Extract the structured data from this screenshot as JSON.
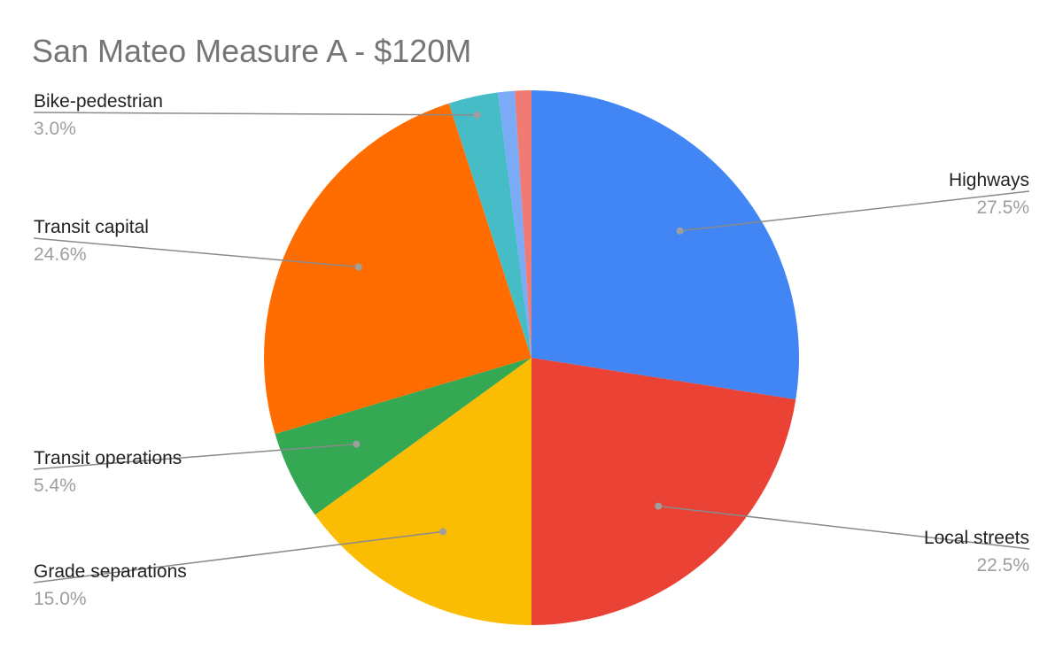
{
  "chart_data": {
    "type": "pie",
    "title": "San Mateo Measure A - $120M",
    "slices": [
      {
        "name": "Highways",
        "value": 27.5,
        "label": "27.5%",
        "color": "#4285f4",
        "labeled": true
      },
      {
        "name": "Local streets",
        "value": 22.5,
        "label": "22.5%",
        "color": "#ea4335",
        "labeled": true
      },
      {
        "name": "Grade separations",
        "value": 15.0,
        "label": "15.0%",
        "color": "#fbbc04",
        "labeled": true
      },
      {
        "name": "Transit operations",
        "value": 5.4,
        "label": "5.4%",
        "color": "#34a853",
        "labeled": true
      },
      {
        "name": "Transit capital",
        "value": 24.6,
        "label": "24.6%",
        "color": "#ff6d01",
        "labeled": true
      },
      {
        "name": "Bike-pedestrian",
        "value": 3.0,
        "label": "3.0%",
        "color": "#46bdc6",
        "labeled": true
      },
      {
        "name": "",
        "value": 1.0,
        "label": "",
        "color": "#7baaf7",
        "labeled": false
      },
      {
        "name": "",
        "value": 1.0,
        "label": "",
        "color": "#f07b72",
        "labeled": false
      }
    ],
    "legend": "none"
  }
}
